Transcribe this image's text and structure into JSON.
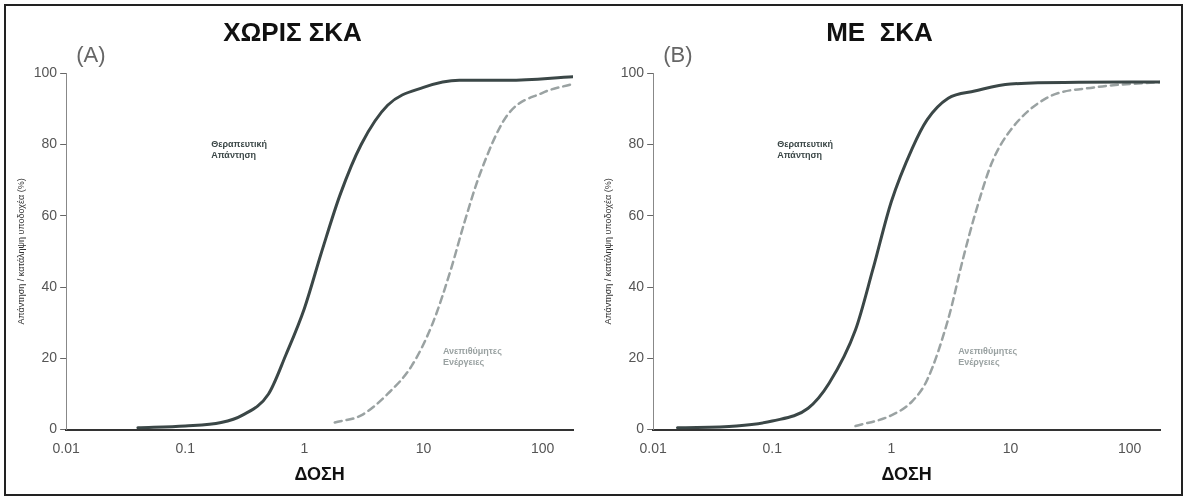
{
  "chart_data": [
    {
      "type": "line",
      "title": "ΧΩΡΙΣ ΣΚΑ",
      "xlabel": "ΔΟΣΗ",
      "ylabel": "Απάντηση / κατάληψη υποδοχέα (%)",
      "log": "x",
      "xlim": [
        0.01,
        180
      ],
      "xticks": [
        0.01,
        0.1,
        1,
        10,
        100
      ],
      "ylim": [
        0,
        100
      ],
      "yticks": [
        0,
        20,
        40,
        60,
        80,
        100
      ],
      "grid": false,
      "legend": false,
      "marker": "none",
      "annotations": [
        "(A)"
      ],
      "series": [
        {
          "name": "Θεραπευτική\nΑπάντηση",
          "color": "#3b4747",
          "line_style": "solid",
          "x": [
            0.04,
            0.1,
            0.2,
            0.3,
            0.5,
            0.7,
            1,
            1.4,
            2,
            3,
            5,
            10,
            20,
            50,
            180
          ],
          "values": [
            0.5,
            1,
            2,
            4,
            10,
            21,
            34,
            50,
            66,
            80,
            91,
            96,
            98,
            98,
            99
          ]
        },
        {
          "name": "Ανεπιθύμητες\nΕνέργειες",
          "color": "#9aa2a2",
          "line_style": "dashed",
          "x": [
            1.8,
            3,
            5,
            8,
            12,
            17,
            22,
            30,
            50,
            100,
            180
          ],
          "values": [
            2,
            4,
            10,
            18,
            30,
            45,
            58,
            72,
            88,
            94.5,
            97
          ]
        }
      ]
    },
    {
      "type": "line",
      "title": "ΜΕ  ΣΚΑ",
      "xlabel": "ΔΟΣΗ",
      "ylabel": "Απάντηση / κατάληψη υποδοχέα (%)",
      "log": "x",
      "xlim": [
        0.01,
        180
      ],
      "xticks": [
        0.01,
        0.1,
        1,
        10,
        100
      ],
      "ylim": [
        0,
        100
      ],
      "yticks": [
        0,
        20,
        40,
        60,
        80,
        100
      ],
      "grid": false,
      "legend": false,
      "marker": "none",
      "annotations": [
        "(B)"
      ],
      "series": [
        {
          "name": "Θεραπευτική\nΑπάντηση",
          "color": "#3b4747",
          "line_style": "solid",
          "x": [
            0.016,
            0.05,
            0.1,
            0.2,
            0.3,
            0.5,
            0.7,
            1,
            1.5,
            2,
            3,
            5,
            10,
            100,
            180
          ],
          "values": [
            0.5,
            1,
            2.4,
            6,
            13,
            28,
            45,
            64,
            79,
            87,
            93,
            95,
            97,
            97.5,
            97.5
          ]
        },
        {
          "name": "Ανεπιθύμητες\nΕνέργειες",
          "color": "#9aa2a2",
          "line_style": "dashed",
          "x": [
            0.5,
            1,
            1.5,
            2,
            3,
            4,
            5,
            7,
            10,
            20,
            50,
            180
          ],
          "values": [
            1,
            4,
            8,
            14,
            31,
            48,
            60,
            75,
            84,
            93,
            96,
            97.5
          ]
        }
      ]
    }
  ]
}
